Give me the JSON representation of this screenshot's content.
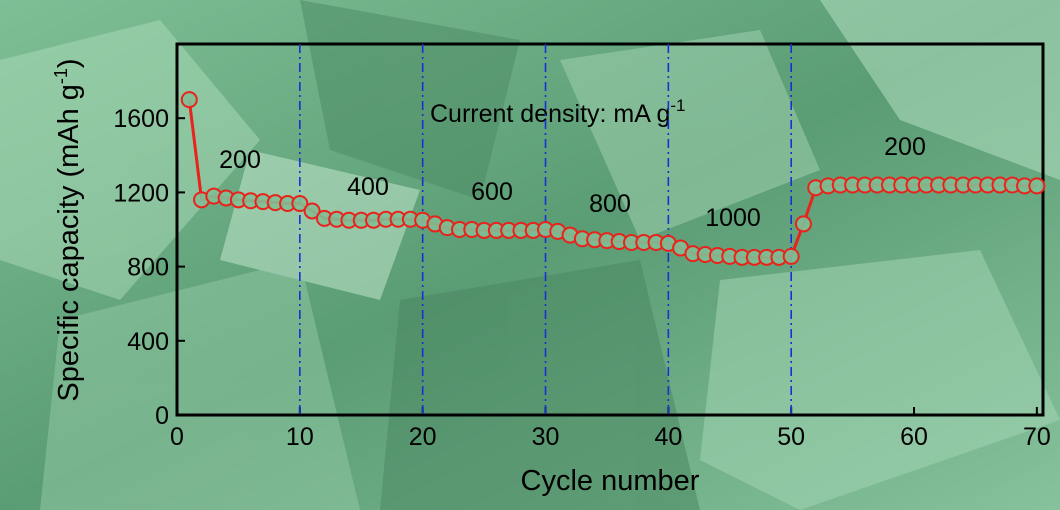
{
  "chart_data": {
    "type": "line",
    "x_label": "Cycle number",
    "y_label": [
      "Specific capacity (mAh g",
      "-1",
      ")"
    ],
    "x": [
      1,
      2,
      3,
      4,
      5,
      6,
      7,
      8,
      9,
      10,
      11,
      12,
      13,
      14,
      15,
      16,
      17,
      18,
      19,
      20,
      21,
      22,
      23,
      24,
      25,
      26,
      27,
      28,
      29,
      30,
      31,
      32,
      33,
      34,
      35,
      36,
      37,
      38,
      39,
      40,
      41,
      42,
      43,
      44,
      45,
      46,
      47,
      48,
      49,
      50,
      51,
      52,
      53,
      54,
      55,
      56,
      57,
      58,
      59,
      60,
      61,
      62,
      63,
      64,
      65,
      66,
      67,
      68,
      69,
      70
    ],
    "series": [
      {
        "color": "#e8231c",
        "values": [
          1700,
          1160,
          1180,
          1170,
          1160,
          1155,
          1150,
          1145,
          1140,
          1140,
          1100,
          1060,
          1055,
          1050,
          1050,
          1050,
          1055,
          1055,
          1055,
          1050,
          1030,
          1010,
          1000,
          1000,
          995,
          995,
          995,
          995,
          995,
          1000,
          990,
          970,
          950,
          945,
          940,
          935,
          930,
          930,
          930,
          925,
          900,
          870,
          865,
          860,
          855,
          850,
          850,
          850,
          850,
          855,
          1030,
          1225,
          1235,
          1240,
          1240,
          1240,
          1240,
          1240,
          1240,
          1240,
          1240,
          1240,
          1240,
          1240,
          1240,
          1240,
          1240,
          1240,
          1235,
          1235
        ]
      }
    ],
    "xlim": [
      0,
      70.5
    ],
    "ylim": [
      0,
      2000
    ],
    "xticks": [
      0,
      10,
      20,
      30,
      40,
      50,
      60,
      70
    ],
    "yticks": [
      0,
      400,
      800,
      1200,
      1600
    ],
    "vlines": [
      10,
      20,
      30,
      40,
      50
    ],
    "vline_color": "#1a2fd6",
    "legend_note": [
      "Current density: mA g",
      "-1"
    ],
    "annotations": [
      "200",
      "400",
      "600",
      "800",
      "1000",
      "200"
    ]
  }
}
